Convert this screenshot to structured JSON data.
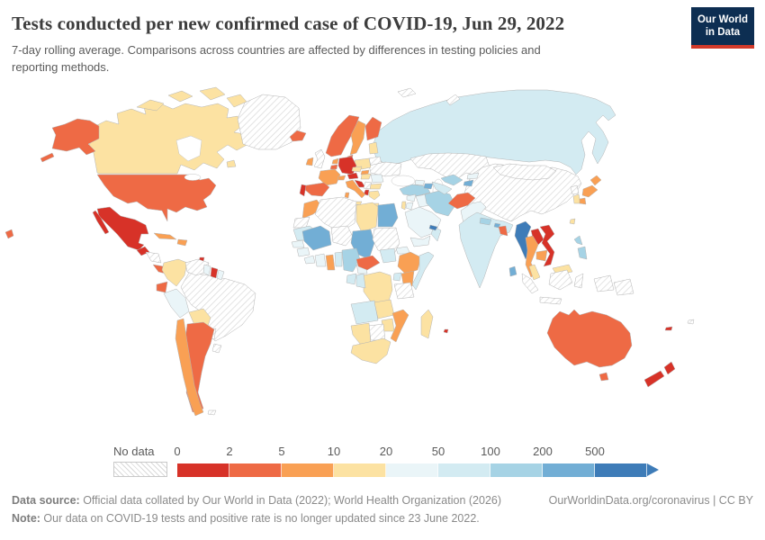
{
  "header": {
    "title": "Tests conducted per new confirmed case of COVID-19, Jun 29, 2022",
    "subtitle": "7-day rolling average. Comparisons across countries are affected by differences in testing policies and reporting methods.",
    "logo": {
      "line1": "Our World",
      "line2": "in Data",
      "bg_color": "#0d2e52",
      "accent_color": "#d23a2a"
    }
  },
  "legend": {
    "no_data_label": "No data",
    "ticks": [
      "0",
      "2",
      "5",
      "10",
      "20",
      "50",
      "100",
      "200",
      "500"
    ],
    "bins": [
      "0-2",
      "2-5",
      "5-10",
      "10-20",
      "20-50",
      "50-100",
      "100-200",
      "200-500",
      "500+"
    ],
    "palette": [
      "#d73228",
      "#ee6a45",
      "#f9a054",
      "#fce2a2",
      "#eaf5f8",
      "#d3ebf2",
      "#a6d3e5",
      "#72aed5",
      "#3e7cb8"
    ]
  },
  "footer": {
    "source_label": "Data source:",
    "source_text": " Official data collated by Our World in Data (2022); World Health Organization (2026)",
    "link_text": "OurWorldinData.org/coronavirus | CC BY",
    "note_label": "Note:",
    "note_text": " Our data on COVID-19 tests and positive rate is no longer updated since 23 June 2022."
  },
  "chart_data": {
    "type": "choropleth-map",
    "title": "Tests conducted per new confirmed case of COVID-19",
    "date": "Jun 29, 2022",
    "unit": "tests per new confirmed case (7-day rolling average)",
    "bins": [
      "0-2",
      "2-5",
      "5-10",
      "10-20",
      "20-50",
      "50-100",
      "100-200",
      "200-500",
      "500+",
      "no-data"
    ],
    "countries": {
      "canada": "10-20",
      "united-states": "2-5",
      "mexico": "0-2",
      "greenland": "no-data",
      "guatemala": "0-2",
      "honduras-nicaragua": "no-data",
      "costa-rica-panama": "2-5",
      "cuba": "5-10",
      "hispaniola": "5-10",
      "trinidad": "0-2",
      "colombia": "10-20",
      "venezuela": "no-data",
      "guyana": "20-50",
      "suriname": "0-2",
      "french-guiana": "20-50",
      "ecuador": "2-5",
      "peru": "20-50",
      "brazil": "no-data",
      "bolivia": "10-20",
      "paraguay": "no-data",
      "chile": "5-10",
      "argentina": "2-5",
      "uruguay": "no-data",
      "falkland-islands": "no-data",
      "iceland": "2-5",
      "united-kingdom": "no-data",
      "ireland": "5-10",
      "norway": "2-5",
      "sweden": "5-10",
      "finland": "2-5",
      "denmark": "2-5",
      "baltic-states": "10-20",
      "germany": "0-2",
      "france": "5-10",
      "spain": "2-5",
      "portugal": "0-2",
      "netherlands": "5-10",
      "belgium": "2-5",
      "switzerland": "5-10",
      "austria": "0-2",
      "czechia": "10-20",
      "slovakia": "5-10",
      "poland": "10-20",
      "italy": "5-10",
      "sicily": "10-20",
      "sardinia": "5-10",
      "croatia": "0-2",
      "hungary": "10-20",
      "romania": "20-50",
      "serbia": "no-data",
      "bulgaria": "10-20",
      "albania": "0-2",
      "greece": "10-20",
      "crete": "10-20",
      "ukraine": "no-data",
      "belarus": "no-data",
      "russia": "50-100",
      "svalbard": "no-data",
      "novaya-zemlya": "no-data",
      "kazakhstan": "no-data",
      "uzbekistan": "100-200",
      "turkmenistan": "50-100",
      "kyrgyzstan": "20-50",
      "tajikistan": "200-500",
      "mongolia": "no-data",
      "china": "no-data",
      "north-korea": "no-data",
      "south-korea": "10-20",
      "japan": "5-10",
      "taiwan": "10-20",
      "turkey": "100-200",
      "georgia": "20-50",
      "azerbaijan": "200-500",
      "syria": "20-50",
      "iraq": "20-50",
      "iran": "100-200",
      "afghanistan": "2-5",
      "pakistan": "20-50",
      "india": "50-100",
      "nepal": "100-200",
      "bhutan": "200-500",
      "bangladesh": "2-5",
      "sri-lanka": "200-500",
      "myanmar": "500+",
      "laos": "0-2",
      "thailand": "5-10",
      "vietnam": "0-2",
      "cambodia": "5-10",
      "malaysia": "10-20",
      "malaysia-borneo": "10-20",
      "philippines": "100-200",
      "indonesia": "no-data",
      "papua-new-guinea": "no-data",
      "saudi-arabia": "20-50",
      "yemen": "20-50",
      "oman": "50-100",
      "united-arab-emirates": "500+",
      "israel": "10-20",
      "jordan": "20-50",
      "morocco": "5-10",
      "western-sahara": "no-data",
      "algeria": "no-data",
      "libya": "10-20",
      "egypt": "200-500",
      "mauritania": "50-100",
      "mali": "200-500",
      "niger": "no-data",
      "chad": "200-500",
      "sudan": "no-data",
      "eritrea": "20-50",
      "ethiopia": "5-10",
      "somalia": "50-100",
      "senegal": "20-50",
      "guinea": "20-50",
      "sierra-leone-liberia": "20-50",
      "ivory-coast": "20-50",
      "ghana": "5-10",
      "togo-benin": "50-100",
      "nigeria": "100-200",
      "cameroon": "20-50",
      "central-african-republic": "2-5",
      "south-sudan": "50-100",
      "uganda": "50-100",
      "kenya": "5-10",
      "tanzania": "no-data",
      "dr-congo": "10-20",
      "congo": "50-100",
      "gabon": "50-100",
      "angola": "50-100",
      "zambia": "10-20",
      "mozambique": "5-10",
      "zimbabwe": "10-20",
      "botswana": "no-data",
      "namibia": "10-20",
      "south-africa": "10-20",
      "madagascar": "10-20",
      "mauritius": "0-2",
      "australia": "2-5",
      "tasmania": "2-5",
      "new-zealand": "0-2",
      "new-caledonia": "0-2",
      "fiji": "no-data"
    }
  }
}
